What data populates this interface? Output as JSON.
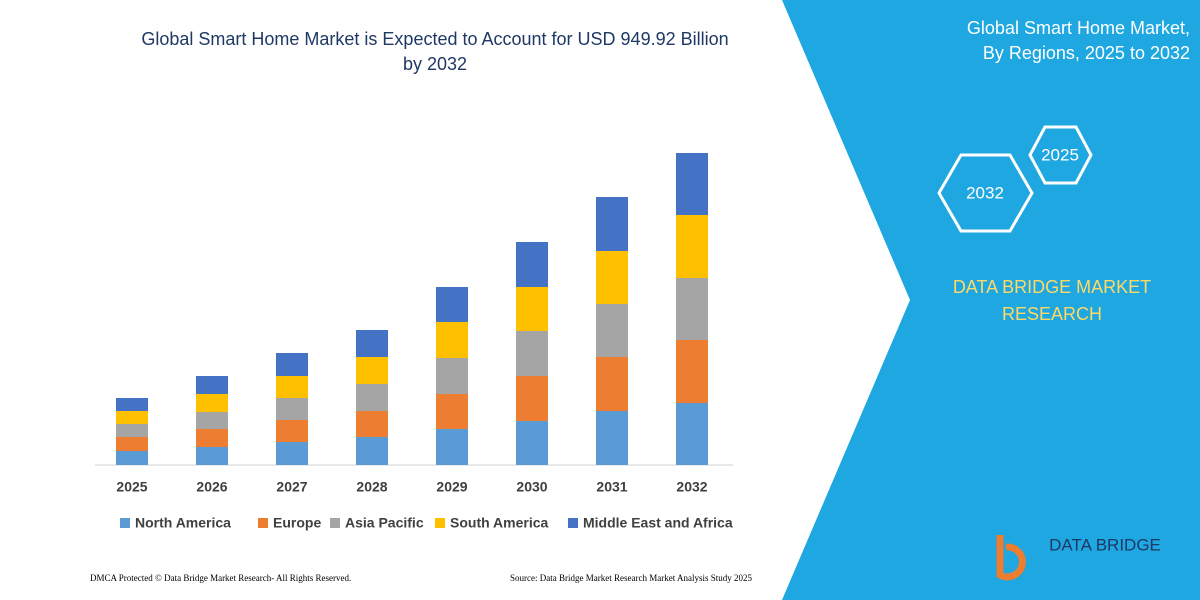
{
  "chart_data": {
    "type": "stacked_bar",
    "title": "Global Smart Home Market is Expected to Account for USD 949.92 Billion by 2032",
    "categories": [
      "2025",
      "2026",
      "2027",
      "2028",
      "2029",
      "2030",
      "2031",
      "2032"
    ],
    "series": [
      {
        "name": "North America",
        "color": "#5b9bd5",
        "values": [
          14,
          18,
          23,
          28,
          36,
          44,
          54,
          62
        ]
      },
      {
        "name": "Europe",
        "color": "#ed7d31",
        "values": [
          14,
          18,
          22,
          26,
          35,
          45,
          54,
          63
        ]
      },
      {
        "name": "Asia Pacific",
        "color": "#a5a5a5",
        "values": [
          13,
          17,
          22,
          27,
          36,
          45,
          53,
          62
        ]
      },
      {
        "name": "South America",
        "color": "#ffc000",
        "values": [
          13,
          18,
          22,
          27,
          36,
          44,
          53,
          63
        ]
      },
      {
        "name": "Middle East and Africa",
        "color": "#4472c4",
        "values": [
          13,
          18,
          23,
          27,
          35,
          45,
          54,
          62
        ]
      }
    ]
  },
  "panel": {
    "title": "Global Smart Home Market, By Regions, 2025 to 2032",
    "hex_top": "2025",
    "hex_bottom": "2032",
    "brand": "DATA BRIDGE MARKET RESEARCH",
    "logo": "DATA BRIDGE"
  },
  "footer": {
    "left": "DMCA Protected © Data Bridge Market Research-  All Rights Reserved.",
    "right": "Source: Data Bridge Market Research  Market Analysis Study 2025"
  }
}
